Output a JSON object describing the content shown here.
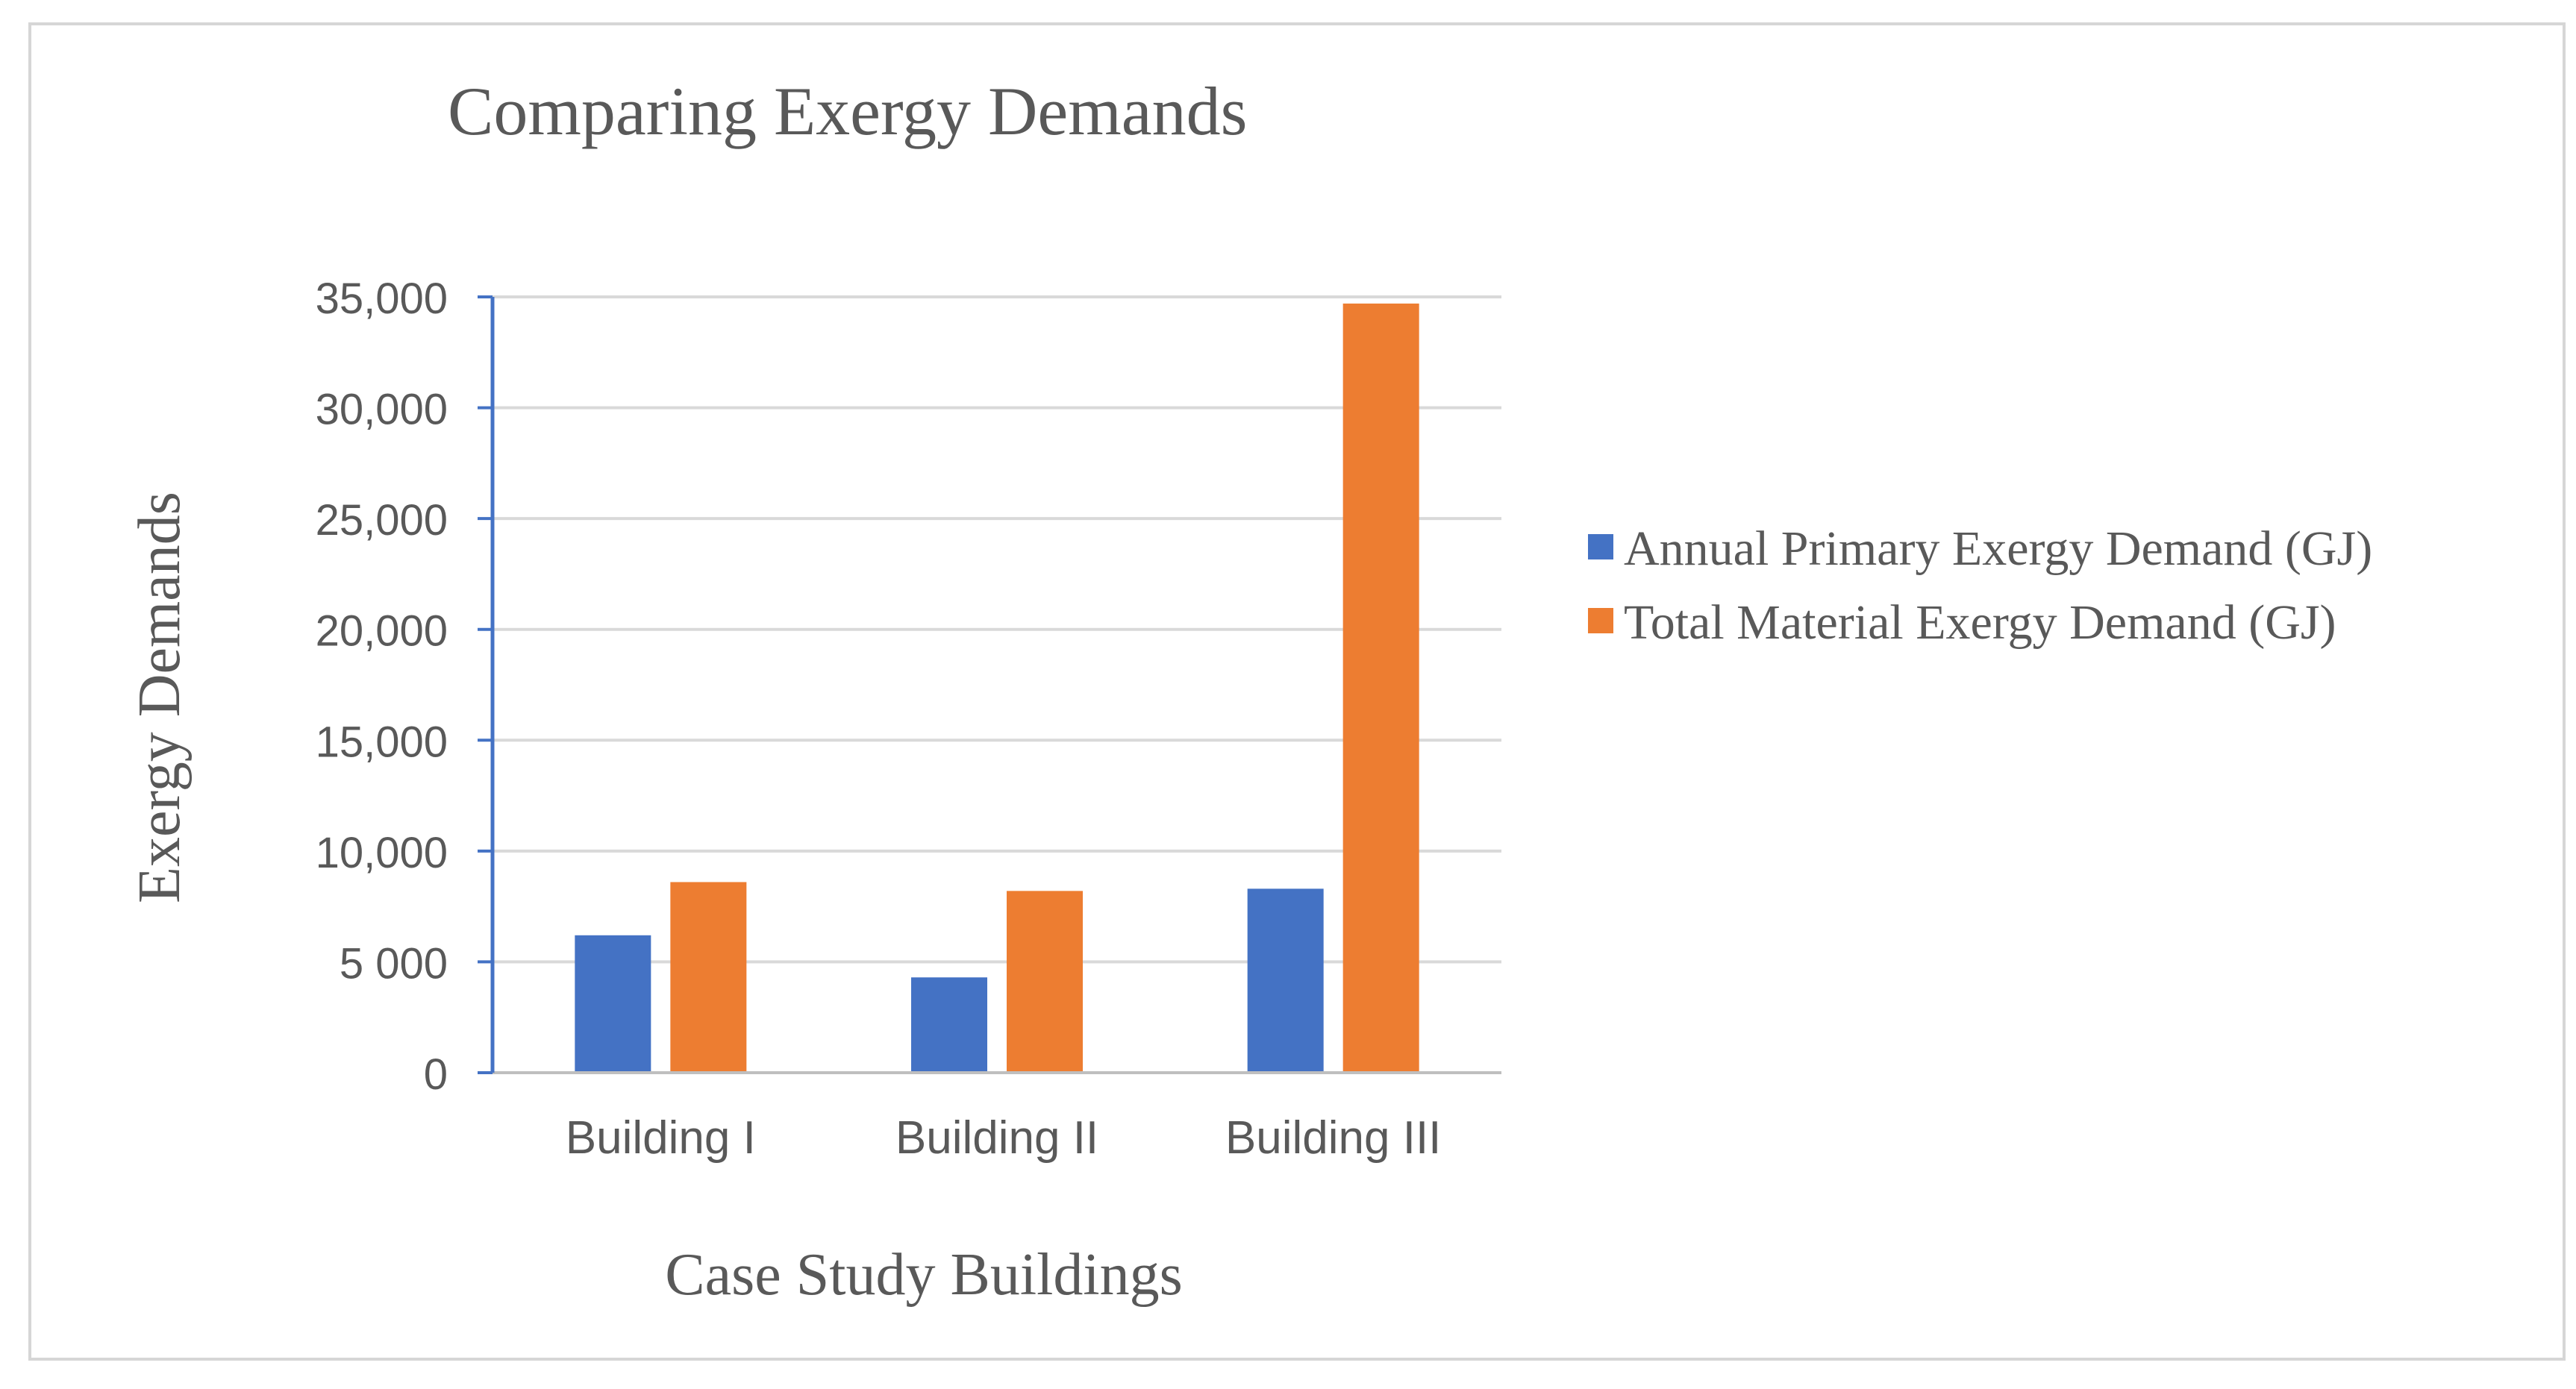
{
  "chart_data": {
    "type": "bar",
    "title": "Comparing Exergy Demands",
    "xlabel": "Case Study Buildings",
    "ylabel": "Exergy Demands",
    "categories": [
      "Building I",
      "Building II",
      "Building III"
    ],
    "series": [
      {
        "name": "Annual Primary Exergy Demand (GJ)",
        "color": "#4472C4",
        "values": [
          6200,
          4300,
          8300
        ]
      },
      {
        "name": "Total Material Exergy Demand (GJ)",
        "color": "#ED7D31",
        "values": [
          8600,
          8200,
          34700
        ]
      }
    ],
    "ylim": [
      0,
      35000
    ],
    "yticks": [
      {
        "value": 0,
        "label": "0"
      },
      {
        "value": 5000,
        "label": "5 000"
      },
      {
        "value": 10000,
        "label": "10,000"
      },
      {
        "value": 15000,
        "label": "15,000"
      },
      {
        "value": 20000,
        "label": "20,000"
      },
      {
        "value": 25000,
        "label": "25,000"
      },
      {
        "value": 30000,
        "label": "30,000"
      },
      {
        "value": 35000,
        "label": "35,000"
      }
    ],
    "grid": true,
    "legend_position": "right",
    "colors": {
      "axis": "#4472C4",
      "grid": "#d9d9d9",
      "text": "#595959"
    }
  }
}
